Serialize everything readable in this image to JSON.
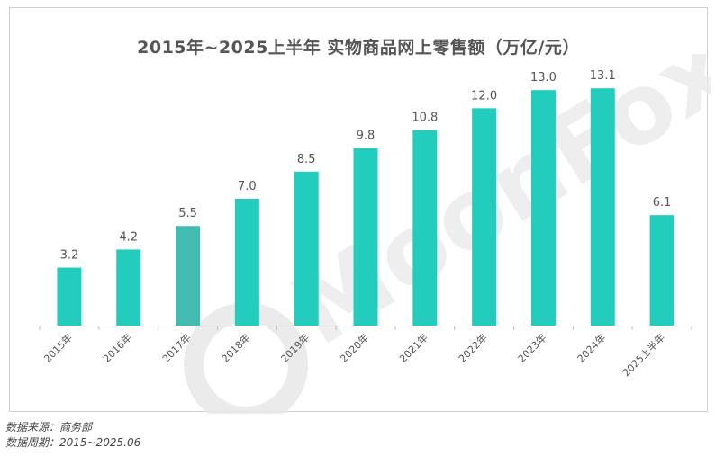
{
  "chart_data": {
    "type": "bar",
    "title": "2015年~2025上半年 实物商品网上零售额（万亿/元）",
    "categories": [
      "2015年",
      "2016年",
      "2017年",
      "2018年",
      "2019年",
      "2020年",
      "2021年",
      "2022年",
      "2023年",
      "2024年",
      "2025上半年"
    ],
    "values": [
      3.2,
      4.2,
      5.5,
      7.0,
      8.5,
      9.8,
      10.8,
      12.0,
      13.0,
      13.1,
      6.1
    ],
    "value_labels": [
      "3.2",
      "4.2",
      "5.5",
      "7.0",
      "8.5",
      "9.8",
      "10.8",
      "12.0",
      "13.0",
      "13.1",
      "6.1"
    ],
    "xlabel": "",
    "ylabel": "",
    "ylim": [
      0,
      14.5
    ],
    "grid": false,
    "bar_color": "#22cdbd",
    "bar_color_alt": "#42bcb0"
  },
  "watermark": "MoonFox",
  "footer": {
    "source": "数据来源：商务部",
    "period": "数据周期：2015~2025.06"
  }
}
